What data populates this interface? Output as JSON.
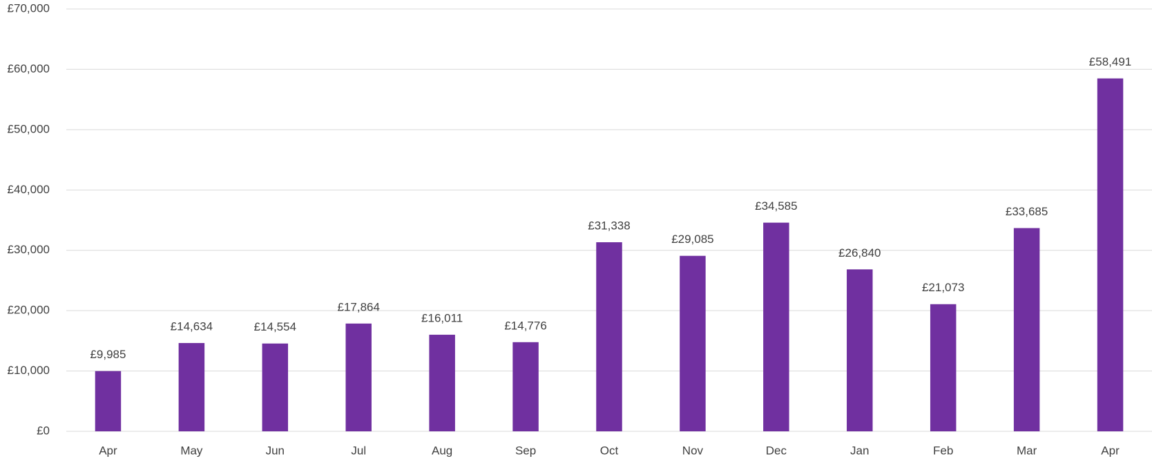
{
  "chart_data": {
    "type": "bar",
    "categories": [
      "Apr",
      "May",
      "Jun",
      "Jul",
      "Aug",
      "Sep",
      "Oct",
      "Nov",
      "Dec",
      "Jan",
      "Feb",
      "Mar",
      "Apr"
    ],
    "values": [
      9985,
      14634,
      14554,
      17864,
      16011,
      14776,
      31338,
      29085,
      34585,
      26840,
      21073,
      33685,
      58491
    ],
    "value_labels": [
      "£9,985",
      "£14,634",
      "£14,554",
      "£17,864",
      "£16,011",
      "£14,776",
      "£31,338",
      "£29,085",
      "£34,585",
      "£26,840",
      "£21,073",
      "£33,685",
      "£58,491"
    ],
    "color": "#7030a0",
    "ylim": [
      0,
      70000
    ],
    "yticks": [
      {
        "value": 0,
        "label": "£0"
      },
      {
        "value": 10000,
        "label": "£10,000"
      },
      {
        "value": 20000,
        "label": "£20,000"
      },
      {
        "value": 30000,
        "label": "£30,000"
      },
      {
        "value": 40000,
        "label": "£40,000"
      },
      {
        "value": 50000,
        "label": "£50,000"
      },
      {
        "value": 60000,
        "label": "£60,000"
      },
      {
        "value": 70000,
        "label": "£70,000"
      }
    ],
    "grid": true
  }
}
